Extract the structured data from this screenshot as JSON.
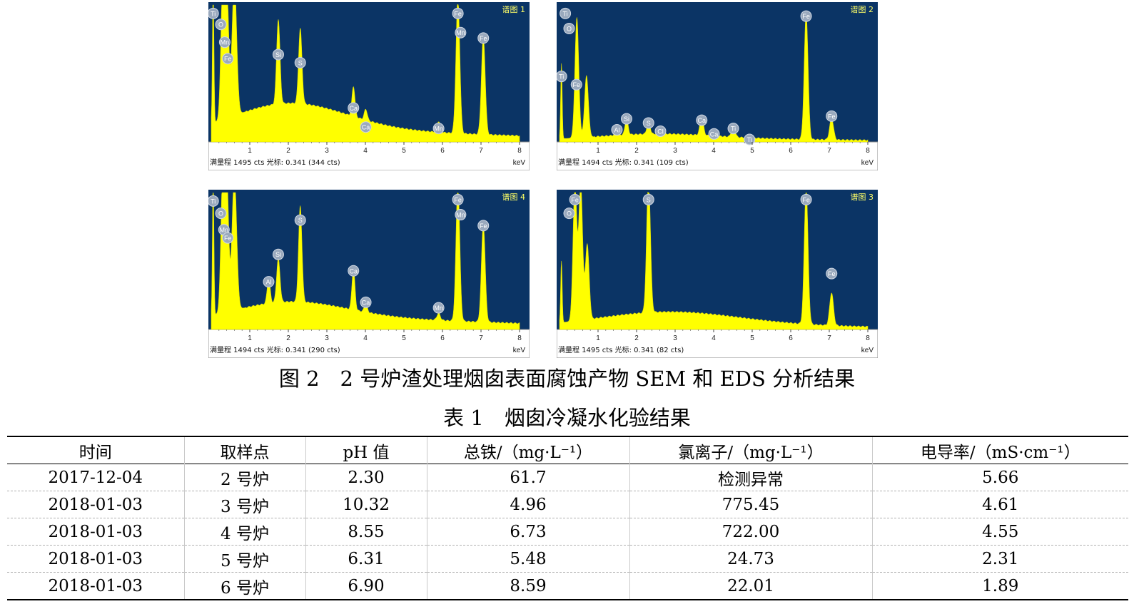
{
  "figure": {
    "caption": "图 2　2 号炉渣处理烟囱表面腐蚀产物 SEM 和 EDS 分析结果",
    "colors": {
      "background": "#0b3465",
      "fill": "#ffff00",
      "axis_bg": "#ffffff"
    }
  },
  "chart_data": [
    {
      "type": "area",
      "title": "谱图 1",
      "xlabel": "keV",
      "xlim": [
        0,
        8
      ],
      "ylim": [
        0,
        1495
      ],
      "xticks": [
        "1",
        "2",
        "3",
        "4",
        "5",
        "6",
        "7",
        "8"
      ],
      "footer": "满量程 1495 cts 光标: 0.341  (344 cts)",
      "background": 0.07,
      "peaks": [
        {
          "x": 0.05,
          "h": 1.0,
          "w": 0.02
        },
        {
          "x": 0.3,
          "h": 1.0,
          "w": 0.05
        },
        {
          "x": 0.4,
          "h": 1.0,
          "w": 0.05
        },
        {
          "x": 0.6,
          "h": 1.0,
          "w": 0.06
        },
        {
          "x": 1.74,
          "h": 0.62,
          "w": 0.045
        },
        {
          "x": 2.31,
          "h": 0.55,
          "w": 0.045
        },
        {
          "x": 3.69,
          "h": 0.22,
          "w": 0.04
        },
        {
          "x": 4.01,
          "h": 0.08,
          "w": 0.04
        },
        {
          "x": 5.9,
          "h": 0.08,
          "w": 0.045
        },
        {
          "x": 6.4,
          "h": 1.0,
          "w": 0.05
        },
        {
          "x": 7.06,
          "h": 0.72,
          "w": 0.05
        }
      ],
      "hump": {
        "x": 2.0,
        "h": 0.22,
        "w": 1.5
      },
      "labels": [
        {
          "el": "Ti",
          "x": 0.05,
          "y": 0.98
        },
        {
          "el": "O",
          "x": 0.25,
          "y": 0.9
        },
        {
          "el": "Mn",
          "x": 0.35,
          "y": 0.77
        },
        {
          "el": "Fe",
          "x": 0.43,
          "y": 0.65
        },
        {
          "el": "Si",
          "x": 1.74,
          "y": 0.68
        },
        {
          "el": "S",
          "x": 2.31,
          "y": 0.62
        },
        {
          "el": "Ca",
          "x": 3.69,
          "y": 0.29
        },
        {
          "el": "Ca",
          "x": 4.01,
          "y": 0.15
        },
        {
          "el": "Mn",
          "x": 5.9,
          "y": 0.14
        },
        {
          "el": "Fe",
          "x": 6.4,
          "y": 0.98
        },
        {
          "el": "Mn",
          "x": 6.47,
          "y": 0.84
        },
        {
          "el": "Fe",
          "x": 7.06,
          "y": 0.8
        }
      ]
    },
    {
      "type": "area",
      "title": "谱图 2",
      "xlabel": "keV",
      "xlim": [
        0,
        8
      ],
      "ylim": [
        0,
        1494
      ],
      "xticks": [
        "1",
        "2",
        "3",
        "4",
        "5",
        "6",
        "7",
        "8"
      ],
      "footer": "满量程 1494 cts 光标: 0.341  (109 cts)",
      "background": 0.02,
      "peaks": [
        {
          "x": 0.05,
          "h": 0.55,
          "w": 0.02
        },
        {
          "x": 0.45,
          "h": 0.88,
          "w": 0.05
        },
        {
          "x": 0.7,
          "h": 0.45,
          "w": 0.05
        },
        {
          "x": 1.49,
          "h": 0.07,
          "w": 0.04
        },
        {
          "x": 1.74,
          "h": 0.12,
          "w": 0.04
        },
        {
          "x": 2.31,
          "h": 0.1,
          "w": 0.04
        },
        {
          "x": 2.62,
          "h": 0.04,
          "w": 0.04
        },
        {
          "x": 3.69,
          "h": 0.14,
          "w": 0.045
        },
        {
          "x": 4.01,
          "h": 0.03,
          "w": 0.04
        },
        {
          "x": 4.51,
          "h": 0.09,
          "w": 0.045
        },
        {
          "x": 4.93,
          "h": 0.02,
          "w": 0.04
        },
        {
          "x": 6.4,
          "h": 0.93,
          "w": 0.05
        },
        {
          "x": 7.06,
          "h": 0.16,
          "w": 0.05
        }
      ],
      "hump": {
        "x": 2.5,
        "h": 0.04,
        "w": 1.5
      },
      "labels": [
        {
          "el": "Ti",
          "x": 0.15,
          "y": 0.98
        },
        {
          "el": "O",
          "x": 0.25,
          "y": 0.87
        },
        {
          "el": "Ti",
          "x": 0.05,
          "y": 0.52
        },
        {
          "el": "Fe",
          "x": 0.44,
          "y": 0.46
        },
        {
          "el": "Al",
          "x": 1.49,
          "y": 0.13
        },
        {
          "el": "Si",
          "x": 1.74,
          "y": 0.21
        },
        {
          "el": "S",
          "x": 2.31,
          "y": 0.18
        },
        {
          "el": "Cl",
          "x": 2.62,
          "y": 0.12
        },
        {
          "el": "Ca",
          "x": 3.69,
          "y": 0.2
        },
        {
          "el": "Ca",
          "x": 4.01,
          "y": 0.1
        },
        {
          "el": "Ti",
          "x": 4.51,
          "y": 0.14
        },
        {
          "el": "Ti",
          "x": 4.93,
          "y": 0.06
        },
        {
          "el": "Fe",
          "x": 6.4,
          "y": 0.96
        },
        {
          "el": "Fe",
          "x": 7.06,
          "y": 0.23
        }
      ]
    },
    {
      "type": "area",
      "title": "谱图 4",
      "xlabel": "keV",
      "xlim": [
        0,
        8
      ],
      "ylim": [
        0,
        1494
      ],
      "xticks": [
        "1",
        "2",
        "3",
        "4",
        "5",
        "6",
        "7",
        "8"
      ],
      "footer": "满量程 1494 cts 光标: 0.341  (290 cts)",
      "background": 0.07,
      "peaks": [
        {
          "x": 0.05,
          "h": 1.0,
          "w": 0.02
        },
        {
          "x": 0.3,
          "h": 1.0,
          "w": 0.05
        },
        {
          "x": 0.4,
          "h": 1.0,
          "w": 0.05
        },
        {
          "x": 0.6,
          "h": 1.0,
          "w": 0.06
        },
        {
          "x": 1.49,
          "h": 0.18,
          "w": 0.04
        },
        {
          "x": 1.74,
          "h": 0.32,
          "w": 0.045
        },
        {
          "x": 2.31,
          "h": 0.7,
          "w": 0.045
        },
        {
          "x": 3.69,
          "h": 0.3,
          "w": 0.04
        },
        {
          "x": 4.01,
          "h": 0.06,
          "w": 0.04
        },
        {
          "x": 5.9,
          "h": 0.05,
          "w": 0.045
        },
        {
          "x": 6.4,
          "h": 1.0,
          "w": 0.05
        },
        {
          "x": 7.06,
          "h": 0.72,
          "w": 0.05
        }
      ],
      "hump": {
        "x": 2.0,
        "h": 0.14,
        "w": 1.5
      },
      "labels": [
        {
          "el": "Ti",
          "x": 0.05,
          "y": 0.98
        },
        {
          "el": "O",
          "x": 0.25,
          "y": 0.89
        },
        {
          "el": "Mn",
          "x": 0.33,
          "y": 0.77
        },
        {
          "el": "Fe",
          "x": 0.43,
          "y": 0.71
        },
        {
          "el": "Al",
          "x": 1.49,
          "y": 0.39
        },
        {
          "el": "Si",
          "x": 1.74,
          "y": 0.59
        },
        {
          "el": "S",
          "x": 2.31,
          "y": 0.84
        },
        {
          "el": "Ca",
          "x": 3.69,
          "y": 0.47
        },
        {
          "el": "Ca",
          "x": 4.01,
          "y": 0.24
        },
        {
          "el": "Mn",
          "x": 5.9,
          "y": 0.2
        },
        {
          "el": "Fe",
          "x": 6.4,
          "y": 0.99
        },
        {
          "el": "Mn",
          "x": 6.47,
          "y": 0.88
        },
        {
          "el": "Fe",
          "x": 7.06,
          "y": 0.8
        }
      ]
    },
    {
      "type": "area",
      "title": "谱图 3",
      "xlabel": "keV",
      "xlim": [
        0,
        8
      ],
      "ylim": [
        0,
        1495
      ],
      "xticks": [
        "1",
        "2",
        "3",
        "4",
        "5",
        "6",
        "7",
        "8"
      ],
      "footer": "满量程 1495 cts 光标: 0.341  (82 cts)",
      "background": 0.03,
      "peaks": [
        {
          "x": 0.05,
          "h": 0.45,
          "w": 0.02
        },
        {
          "x": 0.4,
          "h": 1.0,
          "w": 0.05
        },
        {
          "x": 0.55,
          "h": 1.0,
          "w": 0.05
        },
        {
          "x": 0.72,
          "h": 0.55,
          "w": 0.05
        },
        {
          "x": 2.31,
          "h": 1.0,
          "w": 0.05
        },
        {
          "x": 6.4,
          "h": 1.0,
          "w": 0.05
        },
        {
          "x": 7.06,
          "h": 0.24,
          "w": 0.05
        }
      ],
      "hump": {
        "x": 2.8,
        "h": 0.1,
        "w": 1.8
      },
      "labels": [
        {
          "el": "Fe",
          "x": 0.4,
          "y": 0.99
        },
        {
          "el": "O",
          "x": 0.25,
          "y": 0.89
        },
        {
          "el": "S",
          "x": 2.31,
          "y": 0.99
        },
        {
          "el": "Fe",
          "x": 6.4,
          "y": 0.99
        },
        {
          "el": "Fe",
          "x": 7.06,
          "y": 0.45
        }
      ]
    }
  ],
  "table": {
    "caption": "表 1　烟囱冷凝水化验结果",
    "headers": [
      "时间",
      "取样点",
      "pH 值",
      "总铁/（mg·L⁻¹）",
      "氯离子/（mg·L⁻¹）",
      "电导率/（mS·cm⁻¹）"
    ],
    "rows": [
      [
        "2017-12-04",
        "2 号炉",
        "2.30",
        "61.7",
        "检测异常",
        "5.66"
      ],
      [
        "2018-01-03",
        "3 号炉",
        "10.32",
        "4.96",
        "775.45",
        "4.61"
      ],
      [
        "2018-01-03",
        "4 号炉",
        "8.55",
        "6.73",
        "722.00",
        "4.55"
      ],
      [
        "2018-01-03",
        "5 号炉",
        "6.31",
        "5.48",
        "24.73",
        "2.31"
      ],
      [
        "2018-01-03",
        "6 号炉",
        "6.90",
        "8.59",
        "22.01",
        "1.89"
      ]
    ]
  }
}
